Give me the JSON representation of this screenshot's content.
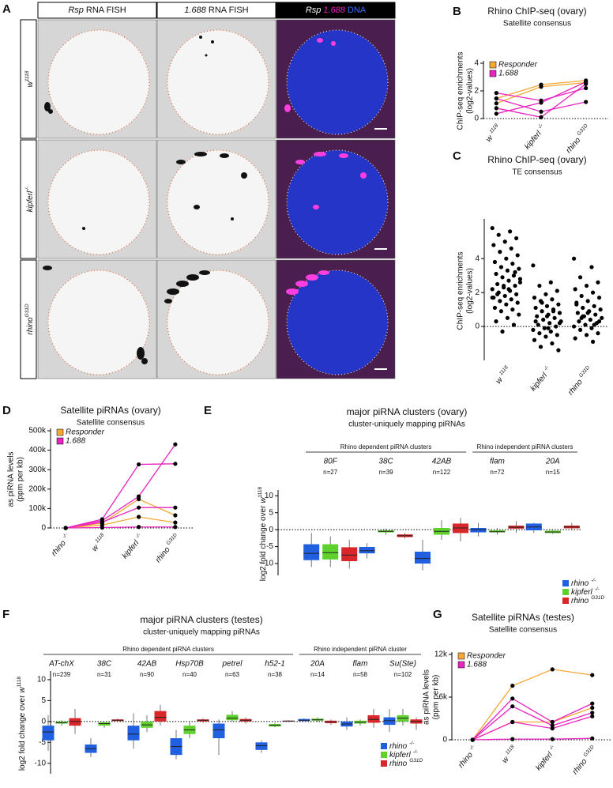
{
  "panel_a": {
    "label": "A",
    "columns": [
      {
        "italic": "Rsp",
        "text": "RNA FISH"
      },
      {
        "italic": "1.688",
        "text": "RNA FISH"
      },
      {
        "italic": "Rsp",
        "italic_2": "1.688",
        "text": "DNA"
      }
    ],
    "rows": [
      {
        "name": "w",
        "sup": "1118"
      },
      {
        "name": "kipferl",
        "sup": "-/-"
      },
      {
        "name": "rhino",
        "sup": "G31D"
      }
    ]
  },
  "chart_data": [
    {
      "type": "line",
      "panel_label": "B",
      "title": "Rhino  ChIP-seq (ovary)",
      "subtitle": "Satellite consensus",
      "y_label": [
        "ChIP-seq enrichments",
        "(log2-values)"
      ],
      "categories": [
        "w",
        "kipferl",
        "rhino"
      ],
      "category_superscripts": [
        "1118",
        "-/-",
        "G31D"
      ],
      "ylim": [
        0,
        4
      ],
      "yticks": [
        0,
        2,
        4
      ],
      "zero_line": true,
      "legend": "top-left",
      "series": [
        {
          "name": "Responder",
          "color": "#f5a834",
          "values": [
            [
              1.45,
              2.45,
              2.75
            ],
            [
              1.1,
              2.3,
              2.6
            ]
          ]
        },
        {
          "name": "1.688",
          "color": "#e823c0",
          "values": [
            [
              1.85,
              1.3,
              2.2
            ],
            [
              0.75,
              0.1,
              2.5
            ],
            [
              0.35,
              1.15,
              2.65
            ],
            [
              1.45,
              0.5,
              1.2
            ]
          ]
        }
      ]
    },
    {
      "type": "strip",
      "panel_label": "C",
      "title": "Rhino  ChIP-seq (ovary)",
      "subtitle": "TE consensus",
      "y_label": [
        "ChIP-seq enrichments",
        "(log2-values)"
      ],
      "categories": [
        "w",
        "kipferl",
        "rhino"
      ],
      "category_superscripts": [
        "1118",
        "-/-",
        "G31D"
      ],
      "ylim": [
        -2,
        6.2
      ],
      "yticks": [
        0,
        2,
        4
      ],
      "zero_line": true,
      "color": "#000000",
      "values": [
        [
          5.8,
          5.6,
          5.4,
          5.2,
          5.0,
          4.8,
          4.6,
          4.4,
          4.2,
          4.0,
          3.8,
          3.7,
          3.5,
          3.4,
          3.3,
          3.1,
          3.0,
          2.9,
          2.8,
          2.7,
          2.5,
          2.4,
          2.3,
          2.2,
          2.1,
          2.0,
          1.9,
          1.8,
          1.7,
          1.6,
          1.5,
          1.4,
          1.3,
          1.1,
          1.0,
          0.9,
          0.7,
          0.5,
          0.3,
          0.1,
          -0.3,
          2.6,
          2.2,
          1.9,
          3.2,
          2.4,
          1.7
        ],
        [
          3.6,
          2.6,
          2.4,
          2.1,
          1.9,
          1.7,
          1.6,
          1.5,
          1.3,
          1.2,
          1.1,
          1.0,
          0.9,
          0.8,
          0.7,
          0.6,
          0.5,
          0.4,
          0.3,
          0.2,
          0.1,
          0.0,
          -0.1,
          -0.2,
          -0.3,
          -0.4,
          -0.5,
          -0.6,
          -0.8,
          -1.0,
          -1.2,
          -1.4,
          0.6,
          0.3,
          0.9,
          1.4,
          0.2,
          -0.1
        ],
        [
          4.0,
          3.5,
          2.9,
          2.6,
          2.4,
          2.2,
          2.0,
          1.8,
          1.7,
          1.5,
          1.4,
          1.2,
          1.1,
          1.0,
          0.9,
          0.8,
          0.7,
          0.6,
          0.5,
          0.4,
          0.3,
          0.2,
          0.1,
          0.0,
          -0.1,
          -0.2,
          -0.4,
          -0.5,
          -0.7,
          -0.9,
          0.5,
          0.3,
          0.8,
          1.3,
          0.1,
          0.6
        ]
      ]
    },
    {
      "type": "line",
      "panel_label": "D",
      "title": "Satellite piRNAs (ovary)",
      "subtitle": "Satellite consensus",
      "y_label": [
        "as piRNA levels",
        "(ppm per kb)"
      ],
      "categories": [
        "rhino",
        "w",
        "kipferl",
        "rhino"
      ],
      "category_superscripts": [
        "-/-",
        "1118",
        "-/-",
        "G31D"
      ],
      "ylim": [
        0,
        500000
      ],
      "yticks": [
        0,
        {
          "value": 100000,
          "label": "100k"
        },
        {
          "value": 200000,
          "label": "200k"
        },
        {
          "value": 300000,
          "label": "300k"
        },
        {
          "value": 400000,
          "label": "400k"
        },
        {
          "value": 500000,
          "label": "500k"
        }
      ],
      "zero_line": true,
      "legend": "top-left",
      "series": [
        {
          "name": "Responder",
          "color": "#f5a834",
          "values": [
            [
              0,
              25000,
              148000,
              65000
            ],
            [
              0,
              15000,
              57000,
              28000
            ]
          ]
        },
        {
          "name": "1.688",
          "color": "#e823c0",
          "values": [
            [
              0,
              45000,
              327000,
              330000
            ],
            [
              0,
              38000,
              162000,
              430000
            ],
            [
              0,
              30000,
              105000,
              105000
            ],
            [
              0,
              2000,
              5000,
              5000
            ]
          ]
        }
      ]
    },
    {
      "type": "box",
      "panel_label": "E",
      "title": "major piRNA clusters (ovary)",
      "subtitle": "cluster-uniquely mapping piRNAs",
      "y_label": "log2 fold change over",
      "y_label_italic": "w",
      "y_label_sup": "1118",
      "groups": [
        {
          "name": "Rhino dependent piRNA clusters",
          "categories": [
            "80F",
            "38C",
            "42AB"
          ],
          "n_labels": [
            "n=27",
            "n=39",
            "n=122"
          ]
        },
        {
          "name": "Rhino independent piRNA clusters",
          "categories": [
            "flam",
            "20A"
          ],
          "n_labels": [
            "n=72",
            "n=15"
          ]
        }
      ],
      "ylim": [
        -13.5,
        11
      ],
      "yticks": [
        -10,
        -5,
        0,
        5,
        10
      ],
      "zero_line": true,
      "legend": "bottom-right",
      "series": [
        {
          "name": "rhino",
          "sup": "-/-",
          "color": "#1f5fe0",
          "boxes": [
            {
              "whislo": -11,
              "q1": -9,
              "med": -7,
              "q3": -4.3,
              "whishi": -1
            },
            {
              "whislo": -8.5,
              "q1": -7,
              "med": -6.2,
              "q3": -5.1,
              "whishi": -4
            },
            {
              "whislo": -12,
              "q1": -10,
              "med": -8.5,
              "q3": -6.5,
              "whishi": -3
            },
            {
              "whislo": -2,
              "q1": -0.8,
              "med": 0,
              "q3": 0.5,
              "whishi": 2
            },
            {
              "whislo": -1,
              "q1": -0.2,
              "med": 0.8,
              "q3": 1.8,
              "whishi": 2
            }
          ]
        },
        {
          "name": "kipferl",
          "sup": "-/-",
          "color": "#5fd12c",
          "boxes": [
            {
              "whislo": -11,
              "q1": -8.8,
              "med": -6.8,
              "q3": -4.3,
              "whishi": -2
            },
            {
              "whislo": -1.5,
              "q1": -0.8,
              "med": -0.5,
              "q3": -0.2,
              "whishi": 0.3
            },
            {
              "whislo": -3,
              "q1": -1.5,
              "med": -0.5,
              "q3": 0.5,
              "whishi": 2.8
            },
            {
              "whislo": -1.5,
              "q1": -0.8,
              "med": -0.6,
              "q3": -0.2,
              "whishi": 0.5
            },
            {
              "whislo": -1.3,
              "q1": -1,
              "med": -0.7,
              "q3": -0.3,
              "whishi": 0
            }
          ]
        },
        {
          "name": "rhino",
          "sup": "G31D",
          "color": "#d9262a",
          "boxes": [
            {
              "whislo": -11.5,
              "q1": -9.3,
              "med": -7.5,
              "q3": -5.2,
              "whishi": -3
            },
            {
              "whislo": -2.6,
              "q1": -2.2,
              "med": -1.8,
              "q3": -1.4,
              "whishi": -1
            },
            {
              "whislo": -3.5,
              "q1": -1,
              "med": 0.5,
              "q3": 1.8,
              "whishi": 3.5
            },
            {
              "whislo": -1,
              "q1": 0.3,
              "med": 0.7,
              "q3": 1.2,
              "whishi": 2.5
            },
            {
              "whislo": 0,
              "q1": 0.4,
              "med": 0.8,
              "q3": 1.2,
              "whishi": 2
            }
          ]
        }
      ]
    },
    {
      "type": "box",
      "panel_label": "F",
      "title": "major piRNA clusters (testes)",
      "subtitle": "cluster-uniquely mapping piRNAs",
      "y_label": "log2 fold change over",
      "y_label_italic": "w",
      "y_label_sup": "1118",
      "groups": [
        {
          "name": "Rhino dependent piRNA clusters",
          "categories": [
            "AT-chX",
            "38C",
            "42AB",
            "Hsp70B",
            "petrel",
            "h52-1"
          ],
          "n_labels": [
            "n=239",
            "n=31",
            "n=90",
            "n=40",
            "n=63",
            "n=38"
          ]
        },
        {
          "name": "Rhino independent piRNA cluster",
          "categories": [
            "20A",
            "flam",
            "Su(Ste)"
          ],
          "n_labels": [
            "n=14",
            "n=58",
            "n=102"
          ]
        }
      ],
      "ylim": [
        -12.5,
        11.5
      ],
      "yticks": [
        -10,
        -5,
        0,
        5,
        10
      ],
      "zero_line": true,
      "legend": "bottom-right",
      "series": [
        {
          "name": "rhino",
          "sup": "-/-",
          "color": "#1f5fe0",
          "boxes": [
            {
              "whislo": -7,
              "q1": -4.5,
              "med": -2.5,
              "q3": -1,
              "whishi": 1.5
            },
            {
              "whislo": -8.5,
              "q1": -7.5,
              "med": -6.5,
              "q3": -5.5,
              "whishi": -4
            },
            {
              "whislo": -6.5,
              "q1": -4.5,
              "med": -3,
              "q3": -1,
              "whishi": 2
            },
            {
              "whislo": -9,
              "q1": -8,
              "med": -6,
              "q3": -4,
              "whishi": -2
            },
            {
              "whislo": -8,
              "q1": -4,
              "med": -2,
              "q3": -0.5,
              "whishi": 0.5
            },
            {
              "whislo": -7.5,
              "q1": -6.8,
              "med": -5.8,
              "q3": -5,
              "whishi": -4.5
            },
            {
              "whislo": 0,
              "q1": 0.1,
              "med": 0.3,
              "q3": 0.6,
              "whishi": 0.8
            },
            {
              "whislo": -2,
              "q1": -1.2,
              "med": -0.6,
              "q3": 0,
              "whishi": 1
            },
            {
              "whislo": -2.5,
              "q1": -0.8,
              "med": 0.2,
              "q3": 1,
              "whishi": 3
            }
          ]
        },
        {
          "name": "kipferl",
          "sup": "-/-",
          "color": "#5fd12c",
          "boxes": [
            {
              "whislo": -1,
              "q1": -0.5,
              "med": -0.3,
              "q3": 0,
              "whishi": 0.3
            },
            {
              "whislo": -1.5,
              "q1": -1,
              "med": -0.5,
              "q3": -0.2,
              "whishi": 0
            },
            {
              "whislo": -2.5,
              "q1": -1.5,
              "med": -0.8,
              "q3": 0,
              "whishi": 1.5
            },
            {
              "whislo": -4,
              "q1": -3,
              "med": -2,
              "q3": -1,
              "whishi": 0
            },
            {
              "whislo": 0,
              "q1": 0.3,
              "med": 0.8,
              "q3": 1.6,
              "whishi": 2.5
            },
            {
              "whislo": -1.4,
              "q1": -1.2,
              "med": -0.9,
              "q3": -0.6,
              "whishi": -0.4
            },
            {
              "whislo": 0,
              "q1": 0.2,
              "med": 0.4,
              "q3": 0.7,
              "whishi": 1
            },
            {
              "whislo": -1,
              "q1": -0.5,
              "med": -0.2,
              "q3": 0.2,
              "whishi": 0.5
            },
            {
              "whislo": -1,
              "q1": 0,
              "med": 0.8,
              "q3": 1.5,
              "whishi": 3
            }
          ]
        },
        {
          "name": "rhino",
          "sup": "G31D",
          "color": "#d9262a",
          "boxes": [
            {
              "whislo": -3,
              "q1": -1,
              "med": 0,
              "q3": 0.8,
              "whishi": 3
            },
            {
              "whislo": 0,
              "q1": 0.1,
              "med": 0.3,
              "q3": 0.5,
              "whishi": 0.7
            },
            {
              "whislo": -1,
              "q1": 0,
              "med": 1,
              "q3": 2.5,
              "whishi": 4
            },
            {
              "whislo": -0.3,
              "q1": 0,
              "med": 0.3,
              "q3": 0.5,
              "whishi": 0.8
            },
            {
              "whislo": -0.5,
              "q1": 0,
              "med": 0.3,
              "q3": 0.6,
              "whishi": 1
            },
            {
              "whislo": 0,
              "q1": 0,
              "med": 0.1,
              "q3": 0.2,
              "whishi": 0.3
            },
            {
              "whislo": -0.8,
              "q1": -0.4,
              "med": -0.1,
              "q3": 0.2,
              "whishi": 0.5
            },
            {
              "whislo": -1.5,
              "q1": -0.3,
              "med": 0.5,
              "q3": 1.5,
              "whishi": 3
            },
            {
              "whislo": -2,
              "q1": -0.5,
              "med": 0,
              "q3": 0.5,
              "whishi": 1
            }
          ]
        }
      ]
    },
    {
      "type": "line",
      "panel_label": "G",
      "title": "Satellite piRNAs (testes)",
      "subtitle": "Satellite consensus",
      "y_label": [
        "as piRNA levels",
        "(ppm per kb)"
      ],
      "categories": [
        "rhino",
        "w",
        "kipferl",
        "rhino"
      ],
      "category_superscripts": [
        "-/-",
        "1118",
        "-/-",
        "G31D"
      ],
      "ylim": [
        0,
        12000
      ],
      "yticks": [
        0,
        {
          "value": 6000,
          "label": "6k"
        },
        {
          "value": 12000,
          "label": "12k"
        }
      ],
      "zero_line": true,
      "legend": "top-left",
      "series": [
        {
          "name": "Responder",
          "color": "#f5a834",
          "values": [
            [
              0,
              7600,
              9900,
              9100
            ],
            [
              0,
              2500,
              2500,
              4500
            ]
          ]
        },
        {
          "name": "1.688",
          "color": "#e823c0",
          "values": [
            [
              0,
              5800,
              2500,
              5100
            ],
            [
              0,
              4700,
              2000,
              3800
            ],
            [
              0,
              2500,
              1600,
              3300
            ],
            [
              0,
              100,
              100,
              200
            ]
          ]
        }
      ]
    }
  ]
}
